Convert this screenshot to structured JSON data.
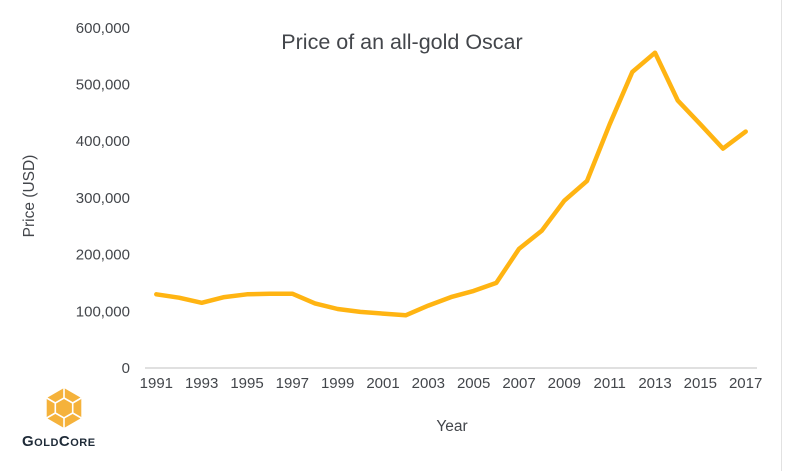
{
  "chart_data": {
    "type": "line",
    "title": "Price of an all-gold Oscar",
    "xlabel": "Year",
    "ylabel": "Price (USD)",
    "x": [
      1991,
      1992,
      1993,
      1994,
      1995,
      1996,
      1997,
      1998,
      1999,
      2000,
      2001,
      2002,
      2003,
      2004,
      2005,
      2006,
      2007,
      2008,
      2009,
      2010,
      2011,
      2012,
      2013,
      2014,
      2015,
      2016,
      2017
    ],
    "series": [
      {
        "name": "Price of an all-gold Oscar (USD)",
        "color": "#FFB412",
        "values": [
          130000,
          124000,
          115000,
          125000,
          130000,
          131000,
          131000,
          114000,
          104000,
          99000,
          96000,
          93000,
          110000,
          125000,
          136000,
          150000,
          210000,
          242000,
          295000,
          330000,
          430000,
          522000,
          556000,
          472000,
          430000,
          387000,
          417000
        ]
      }
    ],
    "ylim": [
      0,
      600000
    ],
    "ytick_interval": 100000,
    "ytick_labels": [
      "0",
      "100,000",
      "200,000",
      "300,000",
      "400,000",
      "500,000",
      "600,000"
    ],
    "xtick_labels": [
      "1991",
      "1993",
      "1995",
      "1997",
      "1999",
      "2001",
      "2003",
      "2005",
      "2007",
      "2009",
      "2011",
      "2013",
      "2015",
      "2017"
    ],
    "grid": false,
    "legend": "none",
    "axis_color": "#d6d6d6",
    "text_color": "#43464b"
  },
  "logo": {
    "wordmark": "GoldCore",
    "icon": "goldcore-hexagon-cube",
    "gold": "#F5B23B",
    "wire_color": "#ffffff",
    "text_color": "#1f2b38"
  }
}
